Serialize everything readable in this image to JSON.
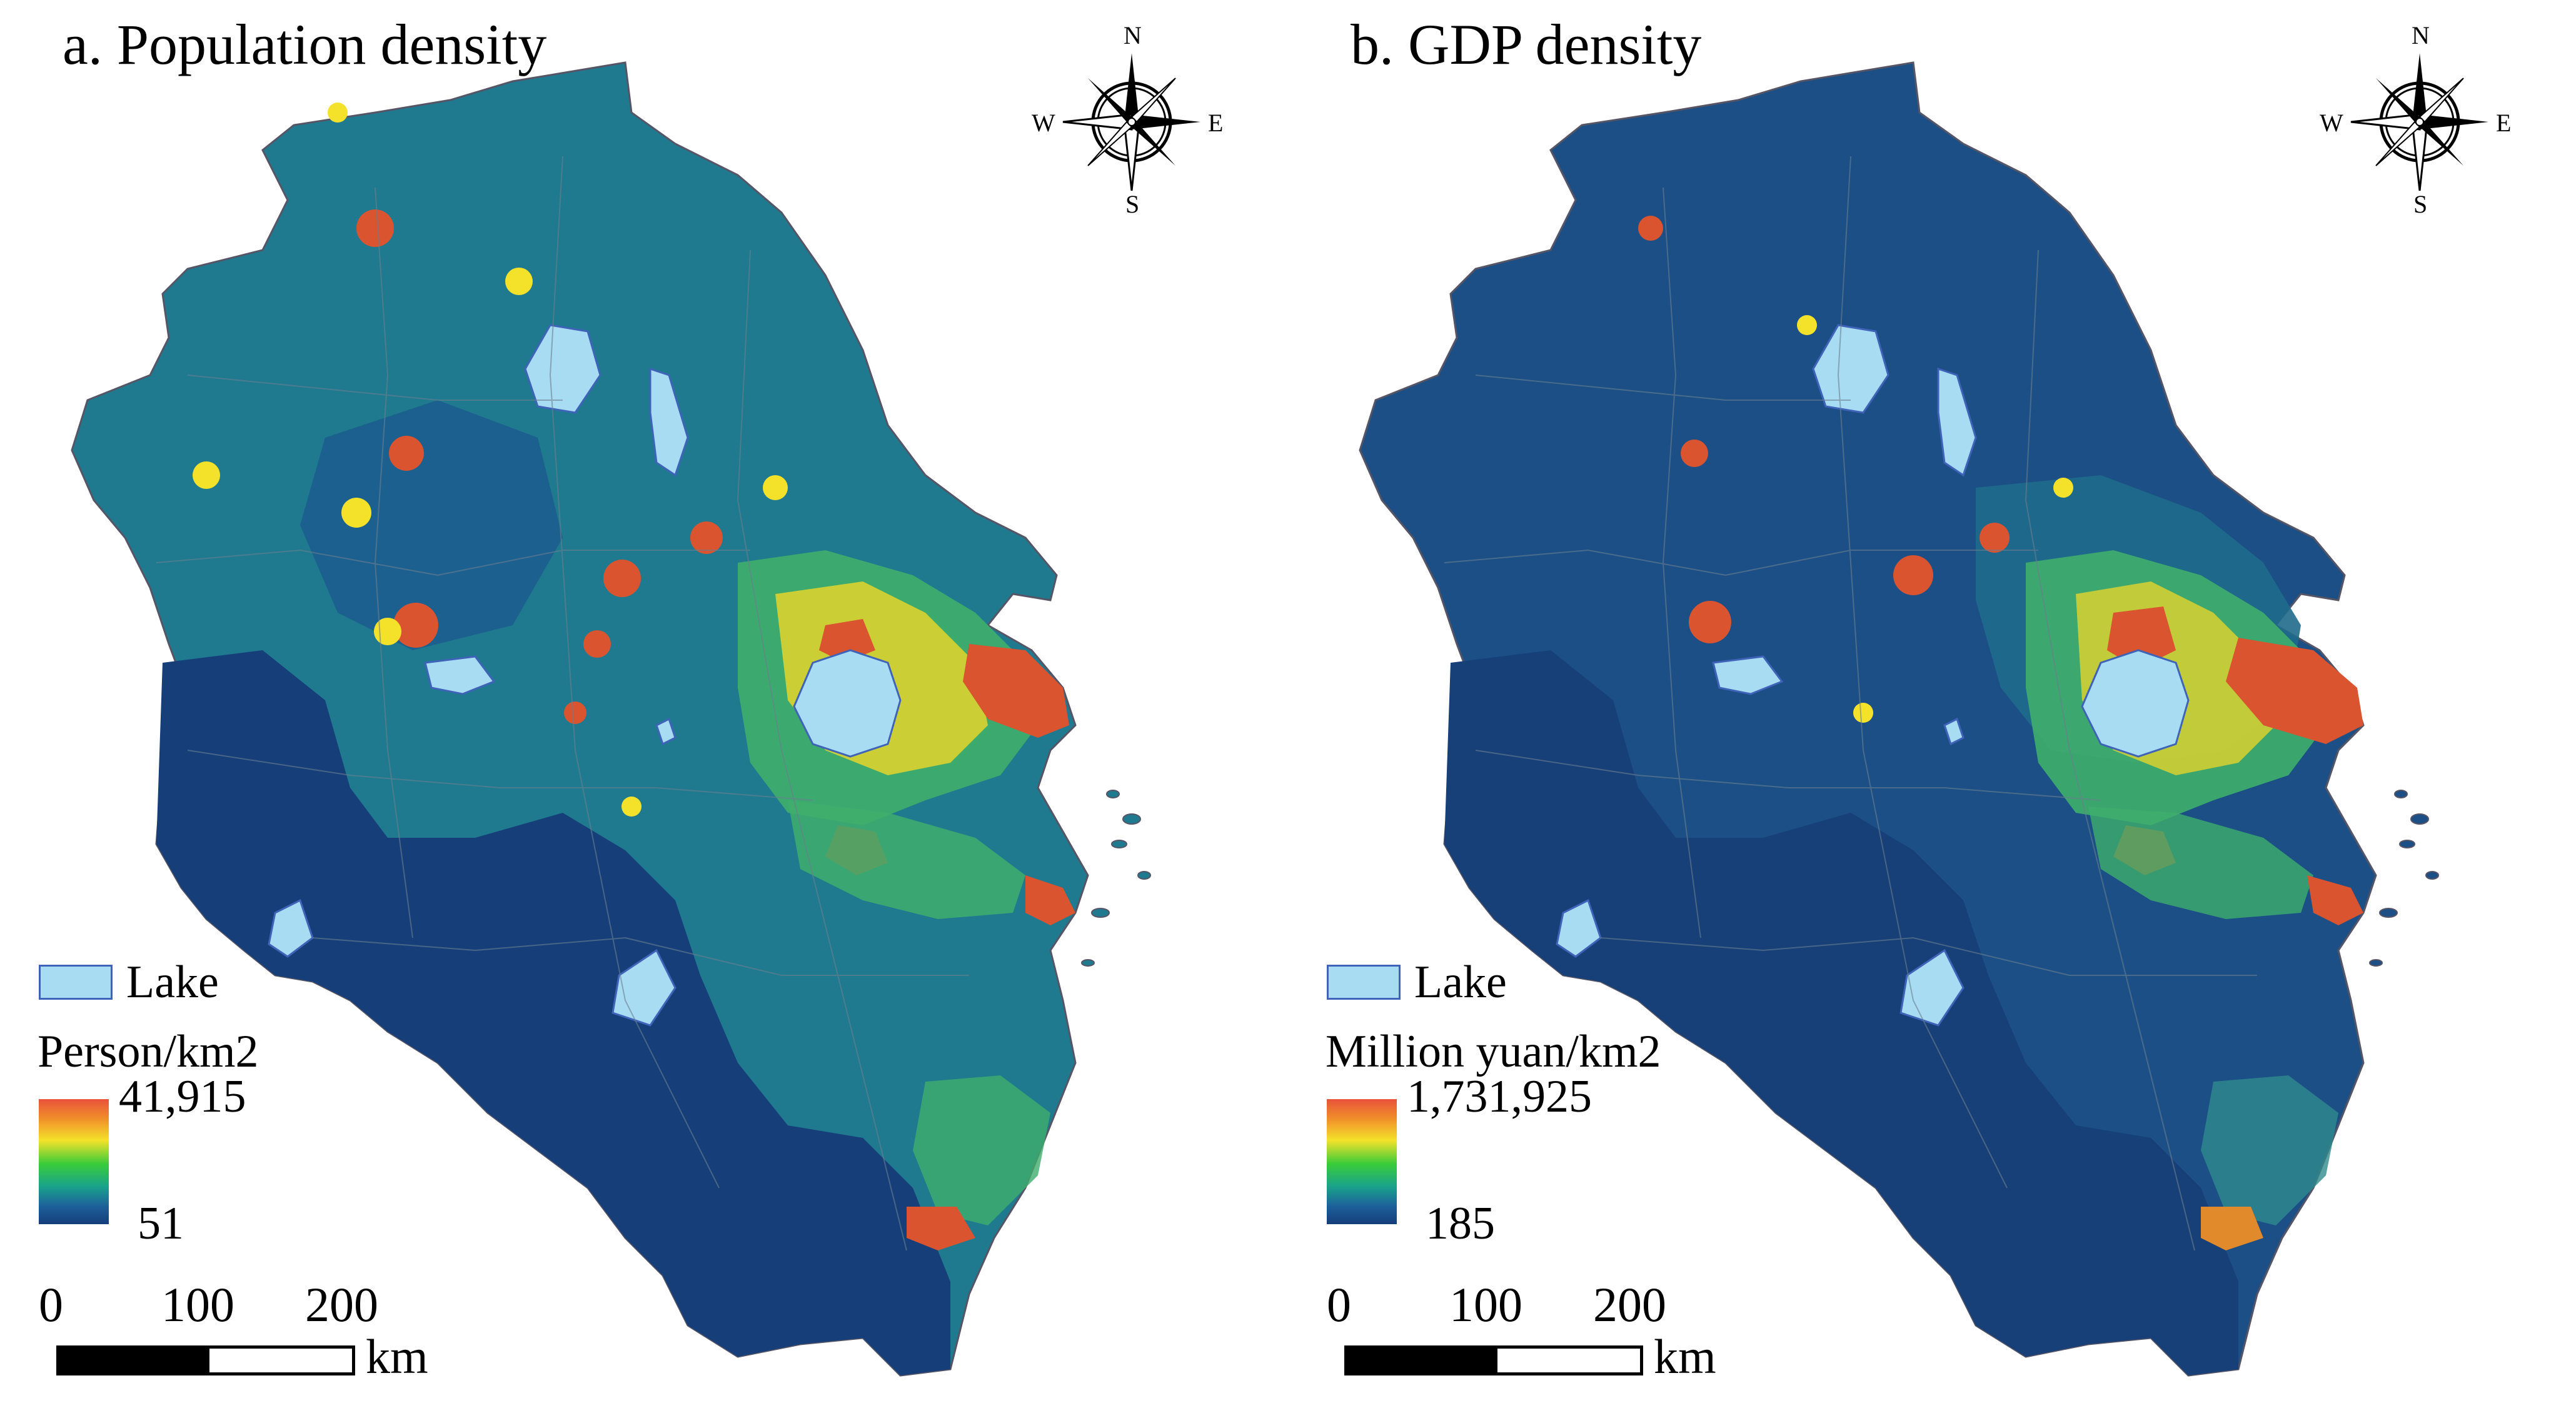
{
  "panels": [
    {
      "title": "a. Population density",
      "compass": {
        "n": "N",
        "s": "S",
        "e": "E",
        "w": "W"
      },
      "legend": {
        "lake_label": "Lake",
        "unit": "Person/km2",
        "max": "41,915",
        "min": "51"
      },
      "scale_bar": {
        "ticks": [
          "0",
          "100",
          "200"
        ],
        "unit": "km"
      }
    },
    {
      "title": "b. GDP density",
      "compass": {
        "n": "N",
        "s": "S",
        "e": "E",
        "w": "W"
      },
      "legend": {
        "lake_label": "Lake",
        "unit": "Million yuan/km2",
        "max": "1,731,925",
        "min": "185"
      },
      "scale_bar": {
        "ticks": [
          "0",
          "100",
          "200"
        ],
        "unit": "km"
      }
    }
  ],
  "colors": {
    "ramp_high": "#e8523a",
    "ramp_mid_high": "#f4e22a",
    "ramp_mid": "#38cc3a",
    "ramp_low": "#153e7a",
    "lake_fill": "#a8dcf3",
    "lake_outline": "#3f63b8",
    "panel_a_base": "#1f7a8f",
    "panel_b_base": "#1b4f86"
  }
}
